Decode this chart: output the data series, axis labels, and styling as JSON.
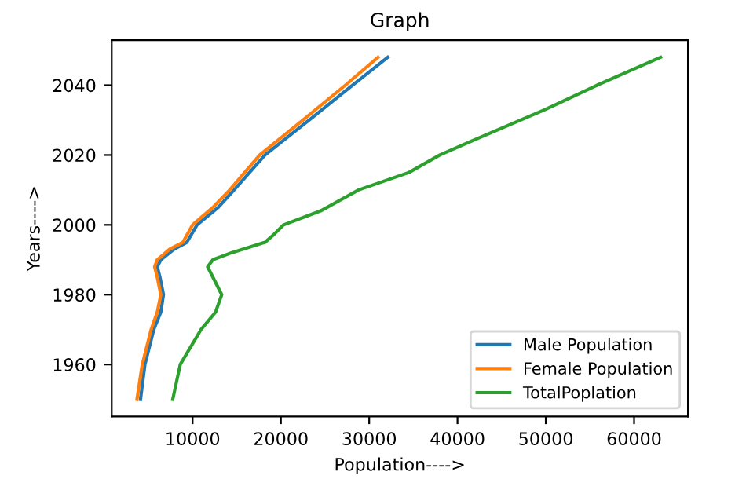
{
  "chart_data": {
    "type": "line",
    "title": "Graph",
    "xlabel": "Population---->",
    "ylabel": "Years---->",
    "xlim": [
      840,
      66100
    ],
    "ylim": [
      1945.1,
      2052.9
    ],
    "xticks": [
      10000,
      20000,
      30000,
      40000,
      50000,
      60000
    ],
    "yticks": [
      1960,
      1980,
      2000,
      2020,
      2040
    ],
    "grid": false,
    "legend": "bottom right",
    "series": [
      {
        "name": "Male Population",
        "color": "#1f77b4",
        "x": [
          4100,
          4600,
          5600,
          6400,
          6700,
          6300,
          6000,
          6400,
          7900,
          9350,
          10500,
          12900,
          14700,
          18200,
          23200,
          28100,
          32100
        ],
        "values": [
          1950,
          1960,
          1970,
          1975,
          1980,
          1985,
          1988,
          1990,
          1993,
          1995,
          2000,
          2005,
          2010,
          2020,
          2030,
          2040,
          2048
        ]
      },
      {
        "name": "Female Population",
        "color": "#ff7f0e",
        "x": [
          3700,
          4300,
          5300,
          6000,
          6400,
          6000,
          5700,
          6000,
          7400,
          8900,
          10000,
          12300,
          14200,
          17600,
          22500,
          27300,
          31000
        ],
        "values": [
          1950,
          1960,
          1970,
          1975,
          1980,
          1985,
          1988,
          1990,
          1993,
          1995,
          2000,
          2005,
          2010,
          2020,
          2030,
          2040,
          2048
        ]
      },
      {
        "name": "TotalPoplation",
        "color": "#2ca02c",
        "x": [
          7750,
          8600,
          10950,
          12600,
          13300,
          12300,
          11700,
          12300,
          14400,
          18200,
          19100,
          20300,
          24500,
          28800,
          34500,
          38000,
          41600,
          49900,
          55800,
          63000
        ],
        "values": [
          1950,
          1960,
          1970,
          1975,
          1980,
          1985,
          1988,
          1990,
          1992,
          1995,
          1997,
          2000,
          2004,
          2010,
          2015,
          2020,
          2024,
          2033,
          2040,
          2048
        ]
      }
    ]
  }
}
